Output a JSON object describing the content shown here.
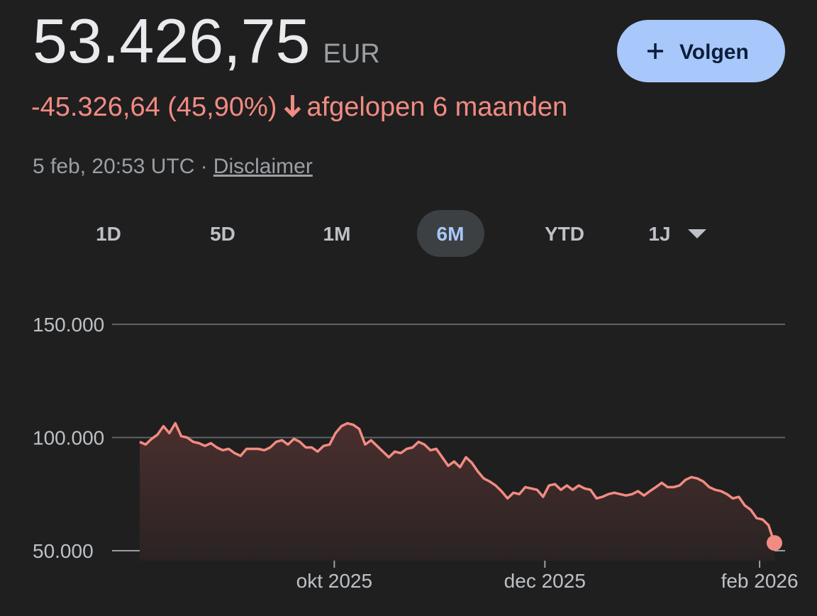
{
  "header": {
    "price": "53.426,75",
    "currency": "EUR",
    "change": "-45.326,64 (45,90%)",
    "period": "afgelopen 6 maanden",
    "timestamp": "5 feb, 20:53 UTC ·",
    "disclaimer": "Disclaimer",
    "follow_button": "Volgen"
  },
  "tabs": [
    "1D",
    "5D",
    "1M",
    "6M",
    "YTD",
    "1J"
  ],
  "selected_tab": "6M",
  "chart_data": {
    "type": "line",
    "color": "#f28b82",
    "grid": true,
    "values": [
      98100,
      96900,
      99400,
      101300,
      105000,
      101900,
      106300,
      100600,
      100000,
      98100,
      97500,
      96300,
      97500,
      95600,
      94400,
      95000,
      93100,
      91900,
      95000,
      95000,
      95000,
      94400,
      95600,
      98100,
      98800,
      96900,
      99400,
      98100,
      95600,
      95600,
      93800,
      96300,
      96900,
      101900,
      105000,
      106300,
      105600,
      103800,
      96900,
      98800,
      96300,
      93800,
      91300,
      93800,
      93100,
      95000,
      95600,
      98100,
      96900,
      94400,
      95000,
      91300,
      87500,
      89400,
      86900,
      91300,
      88800,
      85000,
      81900,
      80600,
      78800,
      76300,
      73100,
      75600,
      75000,
      78100,
      77500,
      76900,
      73800,
      78800,
      79400,
      76900,
      78800,
      76900,
      78800,
      77500,
      76900,
      73100,
      73800,
      75000,
      75600,
      75000,
      74400,
      75000,
      76300,
      74400,
      76300,
      78100,
      80000,
      78100,
      78100,
      78800,
      81300,
      82500,
      81900,
      80600,
      78100,
      76900,
      76300,
      75000,
      73100,
      73800,
      70000,
      68100,
      64400,
      63800,
      61300,
      53426.75
    ],
    "xlim": [
      0,
      107
    ],
    "xticks": [
      {
        "value": 32.8,
        "label": "okt 2025"
      },
      {
        "value": 68.3,
        "label": "dec 2025"
      },
      {
        "value": 104.5,
        "label": "feb 2026"
      }
    ],
    "ylim": [
      50000,
      150000
    ],
    "yticks": [
      {
        "value": 50000,
        "label": "50.000"
      },
      {
        "value": 100000,
        "label": "100.000"
      },
      {
        "value": 150000,
        "label": "150.000"
      }
    ]
  }
}
